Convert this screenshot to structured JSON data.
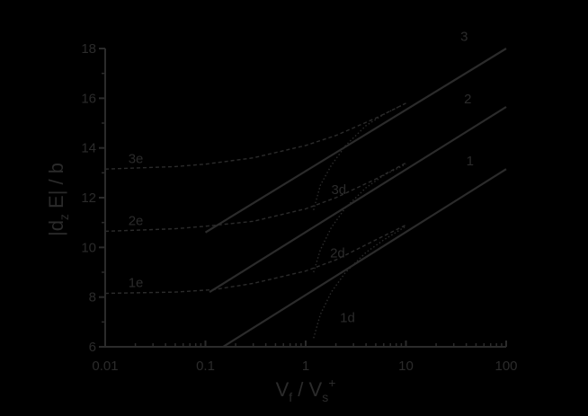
{
  "colors": {
    "background": "#000000",
    "ink": "#2b2b2b"
  },
  "chart_data": {
    "type": "line",
    "title": "",
    "xlabel": "V_f / V_s^+",
    "xlabel_parts": {
      "main1": "V",
      "sub1": "f",
      "slash": " / ",
      "main2": "V",
      "sub2": "s",
      "sup2": "+"
    },
    "ylabel": "|d_z E| / b",
    "ylabel_parts": {
      "pre": "|d",
      "sub": "z",
      "post": " E| / b"
    },
    "xscale": "log",
    "xlim": [
      0.01,
      100
    ],
    "ylim": [
      6,
      18
    ],
    "x_ticks": [
      "0.01",
      "0.1",
      "1",
      "10",
      "100"
    ],
    "y_ticks": [
      "6",
      "8",
      "10",
      "12",
      "14",
      "16",
      "18"
    ],
    "grid": false,
    "legend": "none (inline curve labels)",
    "series": [
      {
        "name": "1",
        "style": "solid",
        "x": [
          0.15,
          100
        ],
        "y": [
          6.0,
          13.15
        ]
      },
      {
        "name": "2",
        "style": "solid",
        "x": [
          0.11,
          100
        ],
        "y": [
          8.2,
          15.65
        ]
      },
      {
        "name": "3",
        "style": "solid",
        "x": [
          0.1,
          100
        ],
        "y": [
          10.6,
          18.0
        ]
      },
      {
        "name": "1e",
        "style": "dashed",
        "x": [
          0.01,
          0.05,
          0.12,
          0.3,
          1,
          2,
          5,
          10
        ],
        "y": [
          8.15,
          8.2,
          8.3,
          8.55,
          9.05,
          9.5,
          10.3,
          10.9
        ]
      },
      {
        "name": "2e",
        "style": "dashed",
        "x": [
          0.01,
          0.05,
          0.1,
          0.3,
          1,
          2,
          5,
          10
        ],
        "y": [
          10.65,
          10.75,
          10.85,
          11.05,
          11.55,
          12.0,
          12.75,
          13.4
        ]
      },
      {
        "name": "3e",
        "style": "dashed",
        "x": [
          0.01,
          0.05,
          0.1,
          0.3,
          1,
          2,
          5,
          10
        ],
        "y": [
          13.15,
          13.25,
          13.35,
          13.6,
          14.1,
          14.5,
          15.2,
          15.8
        ]
      },
      {
        "name": "1d",
        "style": "dotted",
        "x": [
          1.2,
          1.4,
          1.8,
          2.5,
          4,
          6,
          10
        ],
        "y": [
          6.35,
          7.3,
          8.2,
          9.0,
          9.8,
          10.3,
          10.85
        ]
      },
      {
        "name": "2d",
        "style": "dotted",
        "x": [
          1.2,
          1.4,
          1.8,
          2.5,
          4,
          6,
          10
        ],
        "y": [
          9.0,
          9.9,
          10.8,
          11.6,
          12.4,
          12.9,
          13.35
        ]
      },
      {
        "name": "3d",
        "style": "dotted",
        "x": [
          1.2,
          1.4,
          1.8,
          2.5,
          4,
          6,
          10
        ],
        "y": [
          11.5,
          12.5,
          13.3,
          14.1,
          14.9,
          15.35,
          15.8
        ]
      }
    ],
    "annotations": [
      {
        "text": "3",
        "x": 35,
        "y": 18.3
      },
      {
        "text": "2",
        "x": 38,
        "y": 15.8
      },
      {
        "text": "1",
        "x": 40,
        "y": 13.3
      },
      {
        "text": "3e",
        "x": 0.017,
        "y": 13.4
      },
      {
        "text": "2e",
        "x": 0.017,
        "y": 10.9
      },
      {
        "text": "1e",
        "x": 0.017,
        "y": 8.4
      },
      {
        "text": "3d",
        "x": 1.8,
        "y": 12.15
      },
      {
        "text": "2d",
        "x": 1.75,
        "y": 9.6
      },
      {
        "text": "1d",
        "x": 2.2,
        "y": 7.0
      }
    ]
  }
}
